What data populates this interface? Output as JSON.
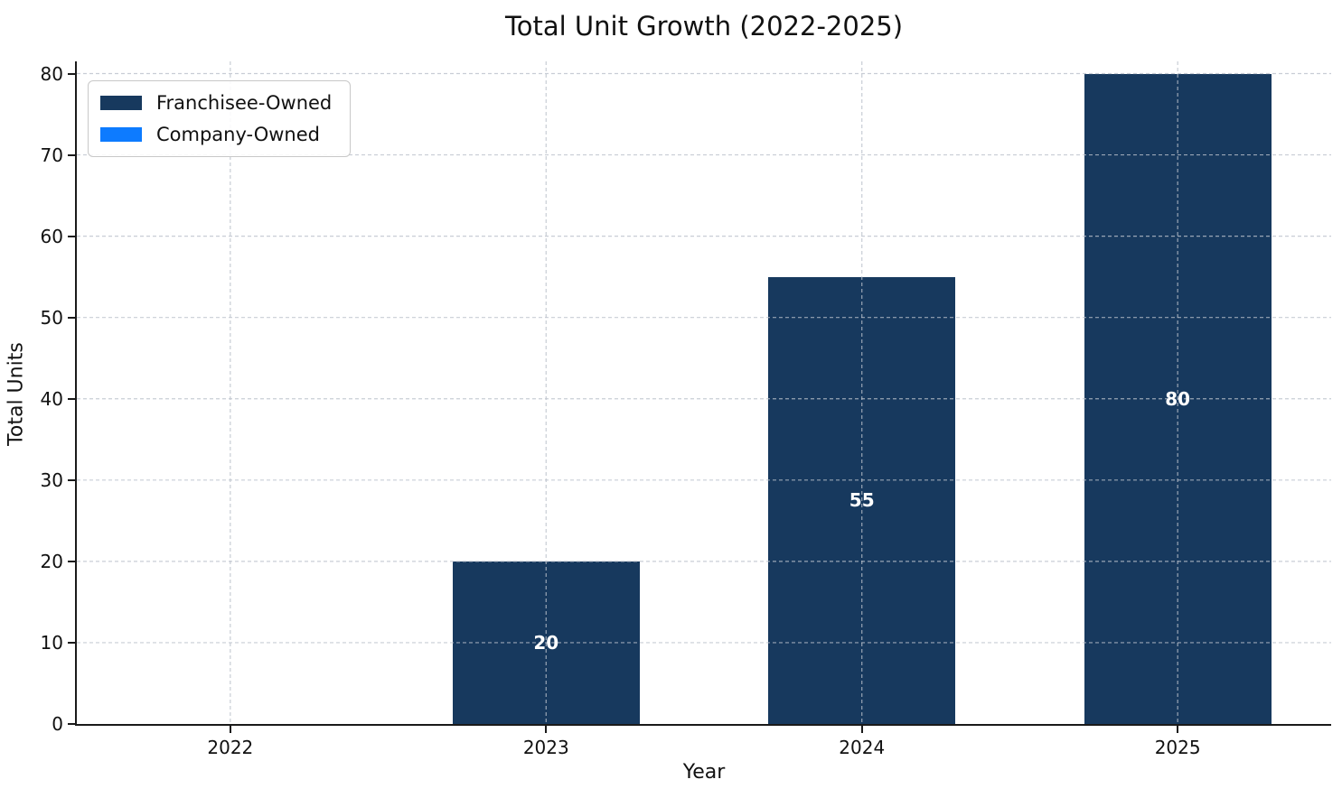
{
  "chart_data": {
    "type": "bar",
    "stacked": true,
    "title": "Total Unit Growth (2022-2025)",
    "xlabel": "Year",
    "ylabel": "Total Units",
    "categories": [
      "2022",
      "2023",
      "2024",
      "2025"
    ],
    "series": [
      {
        "name": "Franchisee-Owned",
        "color": "#17395E",
        "values": [
          0,
          20,
          55,
          80
        ]
      },
      {
        "name": "Company-Owned",
        "color": "#0D7BFF",
        "values": [
          0,
          0,
          0,
          0
        ]
      }
    ],
    "bar_total_labels": [
      "",
      "20",
      "55",
      "80"
    ],
    "ylim": [
      0,
      81.5
    ],
    "yticks": [
      0,
      10,
      20,
      30,
      40,
      50,
      60,
      70,
      80
    ],
    "grid": true,
    "grid_style": "dashed",
    "legend_position": "upper left",
    "background_color": "#ffffff",
    "text_color": "#111111",
    "bar_value_label_color": "#ffffff"
  }
}
